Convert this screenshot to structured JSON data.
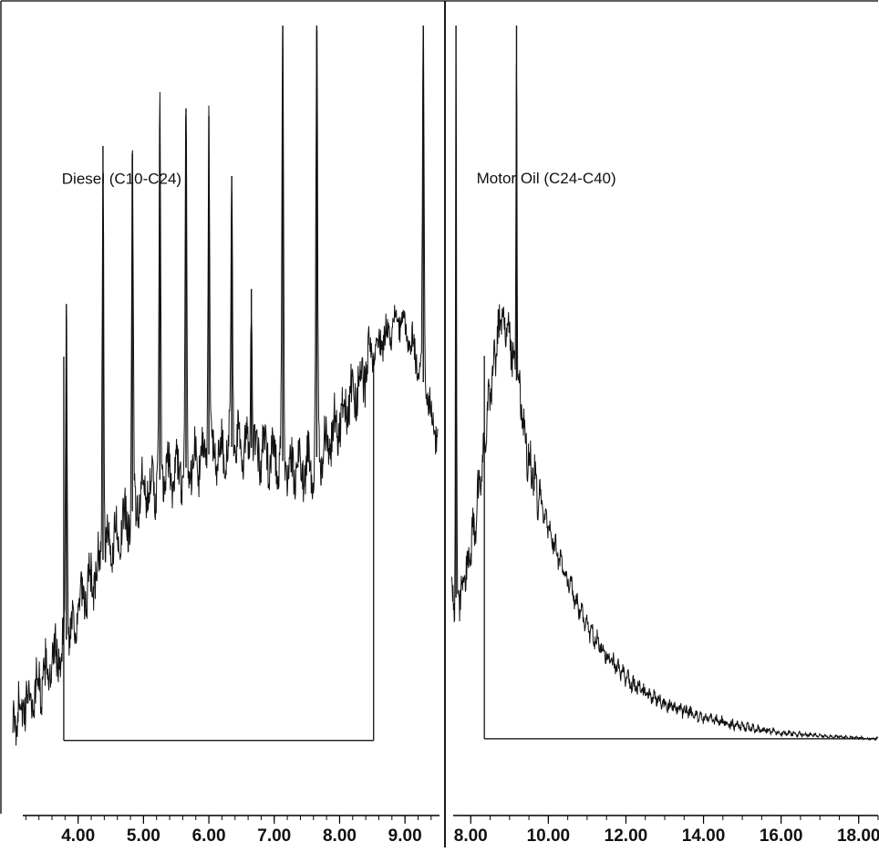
{
  "chart_data": [
    {
      "type": "line",
      "title": "",
      "xlabel": "",
      "ylabel": "",
      "xlim": [
        3.0,
        9.5
      ],
      "ylim": [
        0,
        100
      ],
      "grid": false,
      "x_ticks": [
        4.0,
        5.0,
        6.0,
        7.0,
        8.0,
        9.0
      ],
      "x_tick_labels": [
        "4.00",
        "5.00",
        "6.00",
        "7.00",
        "8.00",
        "9.00"
      ],
      "annotations": [
        {
          "text": "Diesel (C10-C24)",
          "x": 3.75,
          "y": 79
        }
      ],
      "integration_window": {
        "x_start": 3.78,
        "x_end": 8.52,
        "baseline": 5
      },
      "series": [
        {
          "envelope": {
            "x": [
              3.0,
              3.3,
              3.6,
              3.8,
              4.0,
              4.2,
              4.5,
              4.8,
              5.0,
              5.3,
              5.6,
              6.0,
              6.3,
              6.6,
              7.0,
              7.3,
              7.6,
              7.9,
              8.2,
              8.5,
              8.7,
              8.9,
              9.1,
              9.3,
              9.5
            ],
            "y": [
              8,
              11,
              15,
              18,
              22,
              26,
              31,
              35,
              38,
              40,
              41,
              43,
              44,
              44,
              43,
              41,
              42,
              46,
              51,
              56,
              59,
              61,
              58,
              52,
              45
            ]
          },
          "peaks": [
            {
              "x": 3.82,
              "y": 63
            },
            {
              "x": 4.38,
              "y": 84
            },
            {
              "x": 4.83,
              "y": 83
            },
            {
              "x": 5.25,
              "y": 87
            },
            {
              "x": 5.65,
              "y": 89
            },
            {
              "x": 6.0,
              "y": 88
            },
            {
              "x": 6.35,
              "y": 80
            },
            {
              "x": 6.65,
              "y": 65
            },
            {
              "x": 7.13,
              "y": 100
            },
            {
              "x": 7.65,
              "y": 100
            },
            {
              "x": 9.28,
              "y": 100
            }
          ]
        }
      ]
    },
    {
      "type": "line",
      "title": "",
      "xlabel": "",
      "ylabel": "",
      "xlim": [
        7.5,
        18.5
      ],
      "ylim": [
        0,
        100
      ],
      "grid": false,
      "x_ticks": [
        8.0,
        10.0,
        12.0,
        14.0,
        16.0,
        18.0
      ],
      "x_tick_labels": [
        "8.00",
        "10.00",
        "12.00",
        "14.00",
        "16.00",
        "18.00"
      ],
      "annotations": [
        {
          "text": "Motor Oil (C24-C40)",
          "x": 8.15,
          "y": 79
        }
      ],
      "integration_window": {
        "x_start": 8.35,
        "x_end": 18.5,
        "baseline": 5
      },
      "series": [
        {
          "envelope": {
            "x": [
              7.5,
              7.8,
              8.1,
              8.4,
              8.6,
              8.8,
              9.0,
              9.2,
              9.5,
              10.0,
              10.5,
              11.0,
              11.5,
              12.0,
              12.5,
              13.0,
              14.0,
              15.0,
              16.0,
              17.0,
              18.0,
              18.5
            ],
            "y": [
              23,
              25,
              33,
              46,
              56,
              61,
              59,
              52,
              42,
              33,
              26,
              20,
              16,
              13,
              11,
              9.6,
              7.8,
              6.6,
              5.8,
              5.4,
              5.1,
              5.0
            ]
          },
          "peaks": [
            {
              "x": 7.62,
              "y": 100
            },
            {
              "x": 9.18,
              "y": 100
            }
          ]
        }
      ]
    }
  ]
}
